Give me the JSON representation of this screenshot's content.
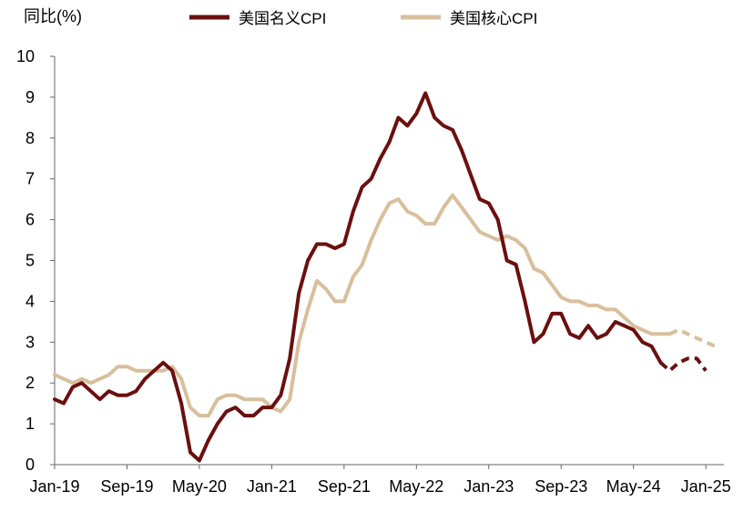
{
  "chart_data": {
    "type": "line",
    "ylabel": "同比(%)",
    "ylim": [
      0,
      10
    ],
    "y_ticks": [
      "0",
      "1",
      "2",
      "3",
      "4",
      "5",
      "6",
      "7",
      "8",
      "9",
      "10"
    ],
    "x_tick_labels": [
      "Jan-19",
      "Sep-19",
      "May-20",
      "Jan-21",
      "Sep-21",
      "May-22",
      "Jan-23",
      "Sep-23",
      "May-24",
      "Jan-25"
    ],
    "x_tick_indices": [
      0,
      8,
      16,
      24,
      32,
      40,
      48,
      56,
      64,
      72
    ],
    "x_range": [
      0,
      74
    ],
    "grid": false,
    "legend_position": "top",
    "series": [
      {
        "name": "美国名义CPI",
        "color": "#6b0f0f",
        "solid": [
          1.6,
          1.5,
          1.9,
          2.0,
          1.8,
          1.6,
          1.8,
          1.7,
          1.7,
          1.8,
          2.1,
          2.3,
          2.5,
          2.3,
          1.5,
          0.3,
          0.1,
          0.6,
          1.0,
          1.3,
          1.4,
          1.2,
          1.2,
          1.4,
          1.4,
          1.7,
          2.6,
          4.2,
          5.0,
          5.4,
          5.4,
          5.3,
          5.4,
          6.2,
          6.8,
          7.0,
          7.5,
          7.9,
          8.5,
          8.3,
          8.6,
          9.1,
          8.5,
          8.3,
          8.2,
          7.7,
          7.1,
          6.5,
          6.4,
          6.0,
          5.0,
          4.9,
          4.0,
          3.0,
          3.2,
          3.7,
          3.7,
          3.2,
          3.1,
          3.4,
          3.1,
          3.2,
          3.5,
          3.4,
          3.3,
          3.0,
          2.9,
          2.5
        ],
        "forecast": [
          2.5,
          2.3,
          2.5,
          2.6,
          2.6,
          2.3
        ]
      },
      {
        "name": "美国核心CPI",
        "color": "#d8bf9c",
        "solid": [
          2.2,
          2.1,
          2.0,
          2.1,
          2.0,
          2.1,
          2.2,
          2.4,
          2.4,
          2.3,
          2.3,
          2.3,
          2.3,
          2.4,
          2.1,
          1.4,
          1.2,
          1.2,
          1.6,
          1.7,
          1.7,
          1.6,
          1.6,
          1.6,
          1.4,
          1.3,
          1.6,
          3.0,
          3.8,
          4.5,
          4.3,
          4.0,
          4.0,
          4.6,
          4.9,
          5.5,
          6.0,
          6.4,
          6.5,
          6.2,
          6.1,
          5.9,
          5.9,
          6.3,
          6.6,
          6.3,
          6.0,
          5.7,
          5.6,
          5.5,
          5.6,
          5.5,
          5.3,
          4.8,
          4.7,
          4.4,
          4.1,
          4.0,
          4.0,
          3.9,
          3.9,
          3.8,
          3.8,
          3.6,
          3.4,
          3.3,
          3.2,
          3.2,
          3.2
        ],
        "forecast": [
          3.2,
          3.3,
          3.2,
          3.1,
          3.0,
          2.9
        ]
      }
    ]
  }
}
